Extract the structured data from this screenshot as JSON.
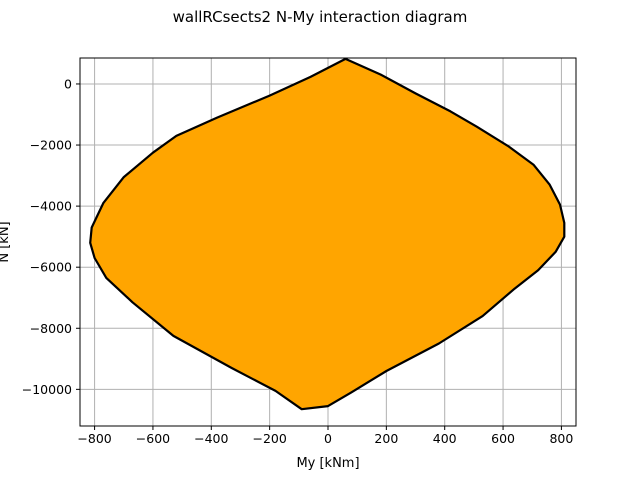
{
  "chart_data": {
    "type": "area",
    "title": "wallRCsects2 N-My interaction diagram",
    "xlabel": "My [kNm]",
    "ylabel": "N [kN]",
    "xlim": [
      -850,
      850
    ],
    "ylim": [
      -11200,
      850
    ],
    "xticks": [
      -800,
      -600,
      -400,
      -200,
      0,
      200,
      400,
      600,
      800
    ],
    "yticks": [
      0,
      -2000,
      -4000,
      -6000,
      -8000,
      -10000
    ],
    "grid": true,
    "legend": "none",
    "fill_color": "#ffa500",
    "edge_color": "#000000",
    "boundary": [
      [
        60,
        820
      ],
      [
        180,
        310
      ],
      [
        300,
        -310
      ],
      [
        420,
        -900
      ],
      [
        510,
        -1400
      ],
      [
        620,
        -2050
      ],
      [
        705,
        -2650
      ],
      [
        760,
        -3300
      ],
      [
        795,
        -3950
      ],
      [
        810,
        -4550
      ],
      [
        810,
        -5000
      ],
      [
        780,
        -5500
      ],
      [
        720,
        -6100
      ],
      [
        640,
        -6700
      ],
      [
        530,
        -7600
      ],
      [
        380,
        -8500
      ],
      [
        200,
        -9400
      ],
      [
        80,
        -10100
      ],
      [
        0,
        -10550
      ],
      [
        -90,
        -10650
      ],
      [
        -180,
        -10050
      ],
      [
        -330,
        -9300
      ],
      [
        -530,
        -8250
      ],
      [
        -670,
        -7150
      ],
      [
        -760,
        -6350
      ],
      [
        -800,
        -5700
      ],
      [
        -815,
        -5200
      ],
      [
        -810,
        -4700
      ],
      [
        -770,
        -3900
      ],
      [
        -700,
        -3050
      ],
      [
        -600,
        -2250
      ],
      [
        -520,
        -1700
      ],
      [
        -380,
        -1100
      ],
      [
        -200,
        -380
      ],
      [
        -60,
        230
      ],
      [
        60,
        820
      ]
    ]
  }
}
